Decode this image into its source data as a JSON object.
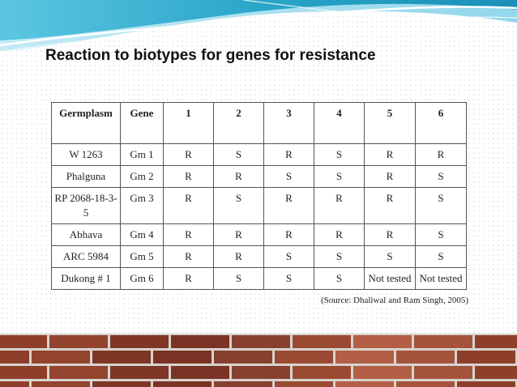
{
  "slide": {
    "title": "Reaction to biotypes for genes for resistance",
    "source_label": "Source",
    "source_text": ": Dhaliwal and Ram Singh, 2005)"
  },
  "table": {
    "headers": [
      "Germplasm",
      "Gene",
      "1",
      "2",
      "3",
      "4",
      "5",
      "6"
    ],
    "rows": [
      [
        "W 1263",
        "Gm 1",
        "R",
        "S",
        "R",
        "S",
        "R",
        "R"
      ],
      [
        "Phalguna",
        "Gm 2",
        "R",
        "R",
        "S",
        "S",
        "R",
        "S"
      ],
      [
        "RP 2068-18-3-5",
        "Gm 3",
        "R",
        "S",
        "R",
        "R",
        "R",
        "S"
      ],
      [
        "Abhava",
        "Gm 4",
        "R",
        "R",
        "R",
        "R",
        "R",
        "S"
      ],
      [
        "ARC 5984",
        "Gm 5",
        "R",
        "R",
        "S",
        "S",
        "S",
        "S"
      ],
      [
        "Dukong # 1",
        "Gm 6",
        "R",
        "S",
        "S",
        "S",
        "Not tested",
        "Not tested"
      ]
    ]
  },
  "colors": {
    "swoosh_dark": "#2aa5c8",
    "swoosh_light": "#8fd6ea",
    "brick": "#8e3f2c",
    "mortar": "#d8d3cd"
  }
}
